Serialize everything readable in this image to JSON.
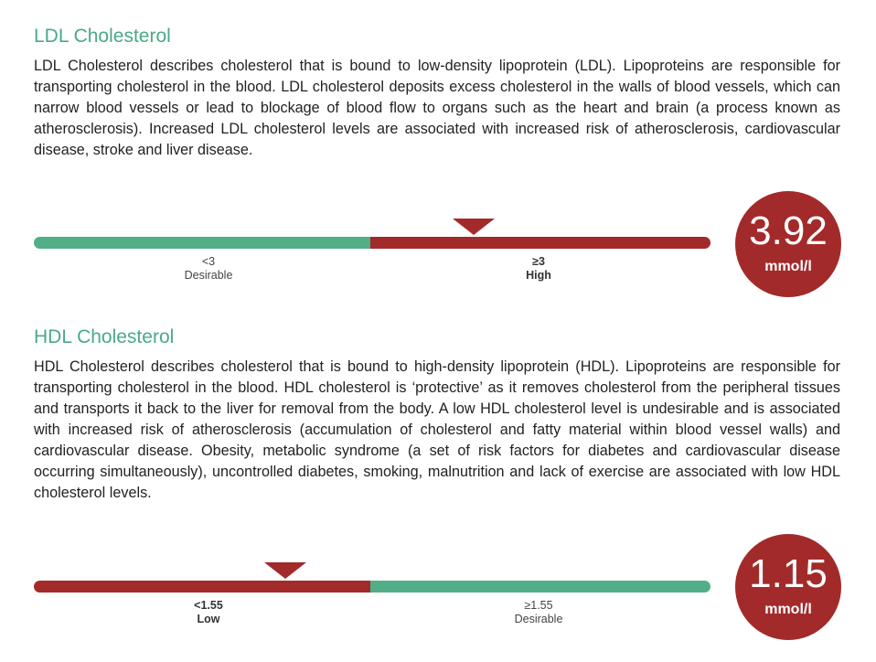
{
  "ldl": {
    "title": "LDL Cholesterol",
    "description": "LDL Cholesterol describes cholesterol that is bound to low-density lipoprotein (LDL). Lipoproteins are responsible for transporting cholesterol in the blood. LDL cholesterol deposits excess cholesterol in the walls of blood vessels, which can narrow blood vessels or lead to blockage of blood flow to organs such as the heart and brain (a process known as atherosclerosis). Increased LDL cholesterol levels are associated with increased risk of atherosclerosis, cardiovascular disease, stroke and liver disease.",
    "ranges": [
      {
        "threshold": "<3",
        "label": "Desirable",
        "color": "#51ae87"
      },
      {
        "threshold": "≥3",
        "label": "High",
        "color": "#a32a2a"
      }
    ],
    "result": {
      "value": "3.92",
      "unit": "mmol/l",
      "color": "#a32a2a"
    }
  },
  "hdl": {
    "title": "HDL Cholesterol",
    "description": "HDL Cholesterol describes cholesterol that is bound to high-density lipoprotein (HDL). Lipoproteins are responsible for transporting cholesterol in the blood. HDL cholesterol is ‘protective’ as it removes cholesterol from the peripheral tissues and transports it back to the liver for removal from the body. A low HDL cholesterol level is undesirable and is associated with increased risk of atherosclerosis (accumulation of cholesterol and fatty material within blood vessel walls) and cardiovascular disease. Obesity, metabolic syndrome (a set of risk factors for diabetes and cardiovascular disease occurring simultaneously), uncontrolled diabetes, smoking, malnutrition and lack of exercise are associated with low HDL cholesterol levels.",
    "ranges": [
      {
        "threshold": "<1.55",
        "label": "Low",
        "color": "#a32a2a"
      },
      {
        "threshold": "≥1.55",
        "label": "Desirable",
        "color": "#51ae87"
      }
    ],
    "result": {
      "value": "1.15",
      "unit": "mmol/l",
      "color": "#a32a2a"
    }
  }
}
